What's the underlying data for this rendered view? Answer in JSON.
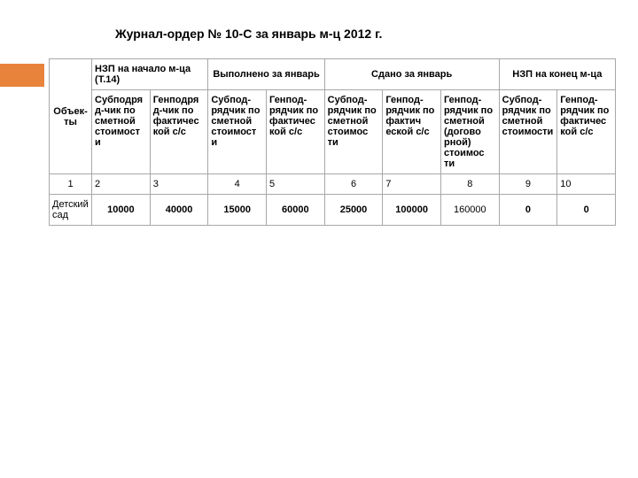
{
  "title": "Журнал-ордер № 10-С за январь м-ц 2012 г.",
  "head1": {
    "c1": "Объек-ты",
    "c2": "НЗП на начало м-ца\n(Т.14)",
    "c3": "Выполнено за январь",
    "c4": "Сдано за январь",
    "c5": "НЗП на конец м-ца"
  },
  "head2": {
    "c2": "Субподря д-чик по сметной стоимост и",
    "c3": "Генподря д-чик по фактичес кой с/с",
    "c4": "Субпод-рядчик по сметной стоимост и",
    "c5": "Генпод-рядчик по фактичес кой с/с",
    "c6": "Субпод-рядчик по сметной стоимос ти",
    "c7": "Генпод-рядчик по фактич еской с/с",
    "c8": "Генпод-рядчик по сметной (догово рной) стоимос ти",
    "c9": "Субпод-рядчик по сметной стоимости",
    "c10": "Генпод-рядчик по фактичес кой с/с"
  },
  "numrow": {
    "c1": "1",
    "c2": "2",
    "c3": "3",
    "c4": "4",
    "c5": "5",
    "c6": "6",
    "c7": "7",
    "c8": "8",
    "c9": "9",
    "c10": "10"
  },
  "datarow": {
    "c1": "Детский сад",
    "c2": "10000",
    "c3": "40000",
    "c4": "15000",
    "c5": "60000",
    "c6": "25000",
    "c7": "100000",
    "c8": "160000",
    "c9": "0",
    "c10": "0"
  }
}
